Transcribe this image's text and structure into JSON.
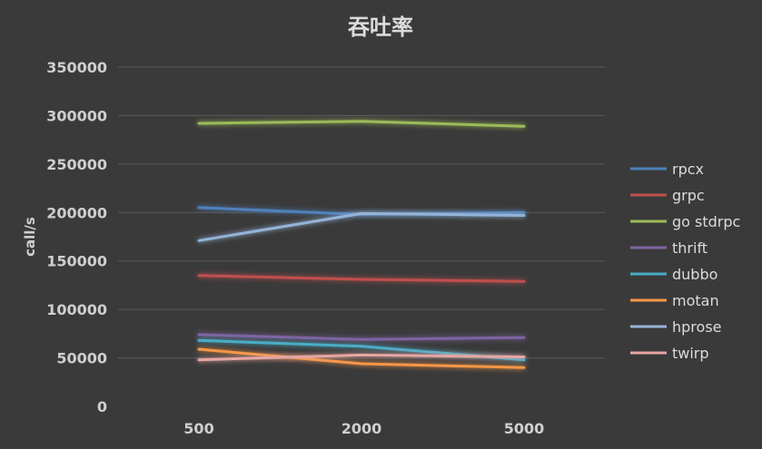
{
  "chart_data": {
    "type": "line",
    "title": "吞吐率",
    "xlabel": "",
    "ylabel": "call/s",
    "categories": [
      "500",
      "2000",
      "5000"
    ],
    "ylim": [
      0,
      350000
    ],
    "yticks": [
      "0",
      "50000",
      "100000",
      "150000",
      "200000",
      "250000",
      "300000",
      "350000"
    ],
    "grid": true,
    "legend_position": "right",
    "series": [
      {
        "name": "rpcx",
        "color": "#4f81bd",
        "values": [
          205000,
          198000,
          200000
        ]
      },
      {
        "name": "grpc",
        "color": "#c0504d",
        "values": [
          135000,
          131000,
          129000
        ]
      },
      {
        "name": "go stdrpc",
        "color": "#9bbb59",
        "values": [
          292000,
          294000,
          289000
        ]
      },
      {
        "name": "thrift",
        "color": "#8064a2",
        "values": [
          74000,
          69000,
          71000
        ]
      },
      {
        "name": "dubbo",
        "color": "#4bacc6",
        "values": [
          68000,
          62000,
          48000
        ]
      },
      {
        "name": "motan",
        "color": "#f79646",
        "values": [
          59000,
          44000,
          40000
        ]
      },
      {
        "name": "hprose",
        "color": "#95b3d7",
        "values": [
          171000,
          199000,
          197000
        ]
      },
      {
        "name": "twirp",
        "color": "#e6a6a4",
        "values": [
          48000,
          53000,
          51000
        ]
      }
    ]
  }
}
